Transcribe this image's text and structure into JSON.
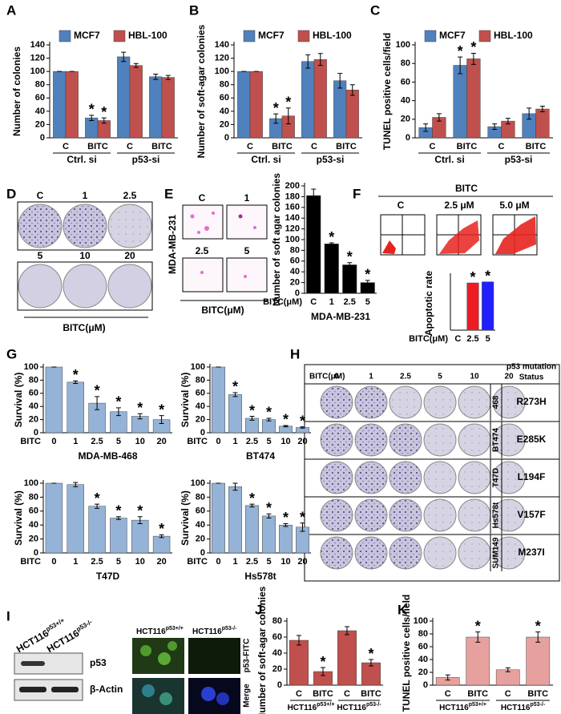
{
  "panel_labels": [
    "A",
    "B",
    "C",
    "D",
    "E",
    "F",
    "G",
    "H",
    "I",
    "J",
    "K"
  ],
  "chart_data": [
    {
      "type": "bar",
      "ylabel": "Number of colonies",
      "categories": [
        "C",
        "BITC",
        "C",
        "BITC"
      ],
      "groups": [
        "Ctrl. si",
        "p53-si"
      ],
      "legend": true,
      "series": [
        {
          "name": "MCF7",
          "color": "#4f81bd",
          "values": [
            100,
            30,
            122,
            92
          ],
          "errors": [
            0,
            4,
            7,
            4
          ]
        },
        {
          "name": "HBL-100",
          "color": "#c0504d",
          "values": [
            100,
            26,
            109,
            91
          ],
          "errors": [
            0,
            4,
            3,
            3
          ]
        }
      ],
      "ylim": [
        0,
        140
      ],
      "yticks": [
        0,
        20,
        40,
        60,
        80,
        100,
        120,
        140
      ],
      "annotations": [
        {
          "text": "*",
          "series": 0,
          "index": 1
        },
        {
          "text": "*",
          "series": 1,
          "index": 1
        }
      ]
    },
    {
      "type": "bar",
      "ylabel": "Number of soft-agar colonies",
      "categories": [
        "C",
        "BITC",
        "C",
        "BITC"
      ],
      "groups": [
        "Ctrl. si",
        "p53-si"
      ],
      "legend": true,
      "series": [
        {
          "name": "MCF7",
          "color": "#4f81bd",
          "values": [
            100,
            29,
            115,
            86
          ],
          "errors": [
            0,
            7,
            10,
            11
          ]
        },
        {
          "name": "HBL-100",
          "color": "#c0504d",
          "values": [
            100,
            33,
            118,
            72
          ],
          "errors": [
            0,
            12,
            9,
            8
          ]
        }
      ],
      "ylim": [
        0,
        140
      ],
      "yticks": [
        0,
        20,
        40,
        60,
        80,
        100,
        120,
        140
      ],
      "annotations": [
        {
          "text": "*",
          "series": 0,
          "index": 1
        },
        {
          "text": "*",
          "series": 1,
          "index": 1
        }
      ]
    },
    {
      "type": "bar",
      "ylabel": "TUNEL positive cells/field",
      "categories": [
        "C",
        "BITC",
        "C",
        "BITC"
      ],
      "groups": [
        "Ctrl. si",
        "p53-si"
      ],
      "legend": true,
      "series": [
        {
          "name": "MCF7",
          "color": "#4f81bd",
          "values": [
            11,
            78,
            12,
            26
          ],
          "errors": [
            4,
            9,
            3,
            6
          ]
        },
        {
          "name": "HBL-100",
          "color": "#c0504d",
          "values": [
            22,
            85,
            18,
            31
          ],
          "errors": [
            4,
            6,
            3,
            3
          ]
        }
      ],
      "ylim": [
        0,
        100
      ],
      "yticks": [
        0,
        20,
        40,
        60,
        80,
        100
      ],
      "annotations": [
        {
          "text": "*",
          "series": 0,
          "index": 1
        },
        {
          "text": "*",
          "series": 1,
          "index": 1
        }
      ]
    },
    {
      "type": "bar",
      "ylabel": "Number of soft agar colonies",
      "x_prefix": "BITC(μM)",
      "xlabel": "MDA-MB-231",
      "categories": [
        "C",
        "1",
        "2.5",
        "5"
      ],
      "series": [
        {
          "color": "#000000",
          "values": [
            182,
            92,
            53,
            20
          ],
          "errors": [
            12,
            2,
            4,
            4
          ]
        }
      ],
      "ylim": [
        0,
        200
      ],
      "yticks": [
        0,
        20,
        40,
        60,
        80,
        100,
        120,
        140,
        160,
        180,
        200
      ],
      "annotations": [
        {
          "text": "*",
          "series": 0,
          "index": 1
        },
        {
          "text": "*",
          "series": 0,
          "index": 2
        },
        {
          "text": "*",
          "series": 0,
          "index": 3
        }
      ]
    },
    {
      "type": "bar",
      "ylabel": "Apoptotic rate",
      "x_prefix": "BITC(μM)",
      "categories": [
        "C",
        "2.5",
        "5"
      ],
      "series": [
        {
          "colors": [
            null,
            "#ed1c24",
            "#1f1fff"
          ],
          "values": [
            null,
            88,
            90
          ]
        }
      ],
      "ylim": [
        0,
        100
      ],
      "annotations": [
        {
          "text": "*",
          "series": 0,
          "index": 1
        },
        {
          "text": "*",
          "series": 0,
          "index": 2
        }
      ]
    },
    {
      "type": "bar",
      "ylabel": "Survival (%)",
      "x_prefix": "BITC",
      "xlabel": "MDA-MB-468",
      "categories": [
        "0",
        "1",
        "2.5",
        "5",
        "10",
        "20"
      ],
      "series": [
        {
          "color": "#95b3d7",
          "values": [
            100,
            77,
            45,
            32,
            25,
            20
          ],
          "errors": [
            0,
            2,
            10,
            6,
            4,
            6
          ]
        }
      ],
      "ylim": [
        0,
        100
      ],
      "yticks": [
        0,
        20,
        40,
        60,
        80,
        100
      ],
      "annotations": [
        {
          "text": "*",
          "series": 0,
          "index": 1
        },
        {
          "text": "*",
          "series": 0,
          "index": 2
        },
        {
          "text": "*",
          "series": 0,
          "index": 3
        },
        {
          "text": "*",
          "series": 0,
          "index": 4
        },
        {
          "text": "*",
          "series": 0,
          "index": 5
        }
      ]
    },
    {
      "type": "bar",
      "ylabel": "Survival (%)",
      "x_prefix": "BITC",
      "xlabel": "BT474",
      "categories": [
        "0",
        "1",
        "2.5",
        "5",
        "10",
        "20"
      ],
      "series": [
        {
          "color": "#95b3d7",
          "values": [
            100,
            58,
            22,
            20,
            10,
            8
          ],
          "errors": [
            0,
            3,
            3,
            2,
            1,
            1
          ]
        }
      ],
      "ylim": [
        0,
        100
      ],
      "yticks": [
        0,
        20,
        40,
        60,
        80,
        100
      ],
      "annotations": [
        {
          "text": "*",
          "series": 0,
          "index": 1
        },
        {
          "text": "*",
          "series": 0,
          "index": 2
        },
        {
          "text": "*",
          "series": 0,
          "index": 3
        },
        {
          "text": "*",
          "series": 0,
          "index": 4
        },
        {
          "text": "*",
          "series": 0,
          "index": 5
        }
      ]
    },
    {
      "type": "bar",
      "ylabel": "Survival (%)",
      "x_prefix": "BITC",
      "xlabel": "T47D",
      "categories": [
        "0",
        "1",
        "2.5",
        "5",
        "10",
        "20"
      ],
      "series": [
        {
          "color": "#95b3d7",
          "values": [
            100,
            98,
            67,
            50,
            47,
            24
          ],
          "errors": [
            0,
            3,
            3,
            2,
            5,
            2
          ]
        }
      ],
      "ylim": [
        0,
        100
      ],
      "yticks": [
        0,
        20,
        40,
        60,
        80,
        100
      ],
      "annotations": [
        {
          "text": "*",
          "series": 0,
          "index": 2
        },
        {
          "text": "*",
          "series": 0,
          "index": 3
        },
        {
          "text": "*",
          "series": 0,
          "index": 4
        },
        {
          "text": "*",
          "series": 0,
          "index": 5
        }
      ]
    },
    {
      "type": "bar",
      "ylabel": "Survival (%)",
      "x_prefix": "BITC",
      "xlabel": "Hs578t",
      "categories": [
        "0",
        "1",
        "2.5",
        "5",
        "10",
        "20"
      ],
      "series": [
        {
          "color": "#95b3d7",
          "values": [
            100,
            95,
            68,
            53,
            40,
            37
          ],
          "errors": [
            0,
            5,
            2,
            3,
            2,
            6
          ]
        }
      ],
      "ylim": [
        0,
        100
      ],
      "yticks": [
        0,
        20,
        40,
        60,
        80,
        100
      ],
      "annotations": [
        {
          "text": "*",
          "series": 0,
          "index": 2
        },
        {
          "text": "*",
          "series": 0,
          "index": 3
        },
        {
          "text": "*",
          "series": 0,
          "index": 4
        },
        {
          "text": "*",
          "series": 0,
          "index": 5
        }
      ]
    },
    {
      "type": "bar",
      "ylabel": "Number of soft-agar colonies",
      "categories": [
        "C",
        "BITC",
        "C",
        "BITC"
      ],
      "groups": [
        {
          "text": "HCT116",
          "sup": "p53+/+"
        },
        {
          "text": "HCT116",
          "sup": "p53-/-"
        }
      ],
      "series": [
        {
          "color": "#c0504d",
          "values": [
            56,
            17,
            68,
            28
          ],
          "errors": [
            6,
            5,
            5,
            4
          ]
        }
      ],
      "ylim": [
        0,
        80
      ],
      "yticks": [
        0,
        20,
        40,
        60,
        80
      ],
      "annotations": [
        {
          "text": "*",
          "series": 0,
          "index": 1
        },
        {
          "text": "*",
          "series": 0,
          "index": 3
        }
      ]
    },
    {
      "type": "bar",
      "ylabel": "TUNEL positive cells/field",
      "categories": [
        "C",
        "BITC",
        "C",
        "BITC"
      ],
      "groups": [
        {
          "text": "HCT116",
          "sup": "p53+/+"
        },
        {
          "text": "HCT116",
          "sup": "p53-/-"
        }
      ],
      "series": [
        {
          "color": "#e6a19e",
          "values": [
            12,
            75,
            24,
            75
          ],
          "errors": [
            4,
            8,
            3,
            8
          ]
        }
      ],
      "ylim": [
        0,
        100
      ],
      "yticks": [
        0,
        20,
        40,
        60,
        80,
        100
      ],
      "annotations": [
        {
          "text": "*",
          "series": 0,
          "index": 1
        },
        {
          "text": "*",
          "series": 0,
          "index": 3
        }
      ]
    }
  ],
  "figures": {
    "D": {
      "doses": [
        "C",
        "1",
        "2.5",
        "5",
        "10",
        "20"
      ],
      "xlabel": "BITC(μM)"
    },
    "E": {
      "doses": [
        "C",
        "1",
        "2.5",
        "5"
      ],
      "cell_line": "MDA-MB-231",
      "xlabel": "BITC(μM)"
    },
    "F": {
      "title": "BITC",
      "conditions": [
        "C",
        "2.5 μM",
        "5.0 μM"
      ]
    },
    "H": {
      "header": "BITC(μM)",
      "doses": [
        "0",
        "1",
        "2.5",
        "5",
        "10",
        "20"
      ],
      "status_header": [
        "p53 mutation",
        "Status"
      ],
      "rows": [
        {
          "line": "468",
          "mutation": "R273H"
        },
        {
          "line": "BT474",
          "mutation": "E285K"
        },
        {
          "line": "T47D",
          "mutation": "L194F"
        },
        {
          "line": "Hs578t",
          "mutation": "V157F"
        },
        {
          "line": "SUM149",
          "mutation": "M237I"
        }
      ]
    },
    "I": {
      "lanes": [
        {
          "text": "HCT116",
          "sup": "p53+/+"
        },
        {
          "text": "HCT116",
          "sup": "p53-/-"
        }
      ],
      "blots": [
        "p53",
        "β-Actin"
      ],
      "stain_rows": [
        "p53-FITC",
        "Merge"
      ]
    }
  }
}
